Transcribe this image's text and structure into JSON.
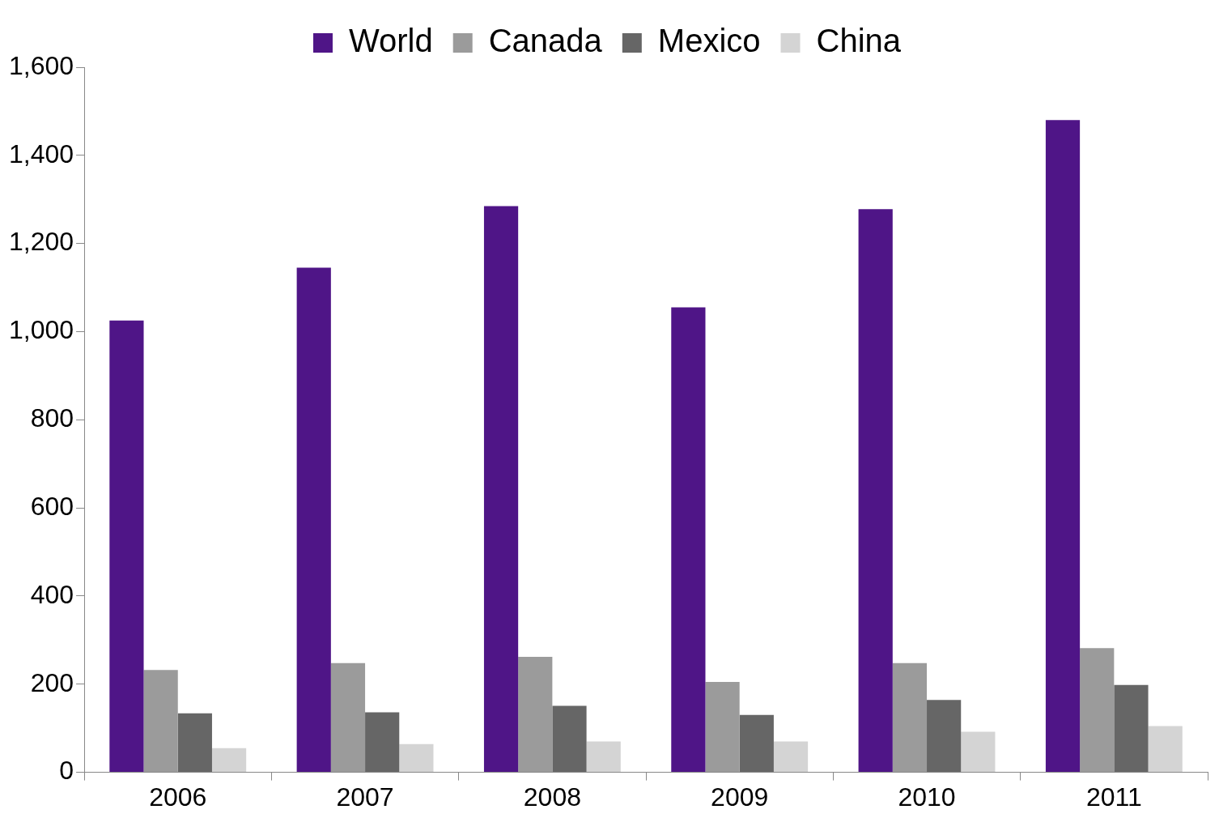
{
  "chart_data": {
    "type": "bar",
    "categories": [
      "2006",
      "2007",
      "2008",
      "2009",
      "2010",
      "2011"
    ],
    "series": [
      {
        "name": "World",
        "color": "#4f1587",
        "values": [
          1025,
          1145,
          1285,
          1055,
          1278,
          1480
        ]
      },
      {
        "name": "Canada",
        "color": "#9b9b9b",
        "values": [
          232,
          248,
          262,
          205,
          248,
          282
        ]
      },
      {
        "name": "Mexico",
        "color": "#666666",
        "values": [
          134,
          136,
          151,
          130,
          164,
          198
        ]
      },
      {
        "name": "China",
        "color": "#d4d4d4",
        "values": [
          55,
          64,
          70,
          70,
          92,
          105
        ]
      }
    ],
    "ylim": [
      0,
      1600
    ],
    "yticks": [
      {
        "value": 0,
        "label": "0"
      },
      {
        "value": 200,
        "label": "200"
      },
      {
        "value": 400,
        "label": "400"
      },
      {
        "value": 600,
        "label": "600"
      },
      {
        "value": 800,
        "label": "800"
      },
      {
        "value": 1000,
        "label": "1,000"
      },
      {
        "value": 1200,
        "label": "1,200"
      },
      {
        "value": 1400,
        "label": "1,400"
      },
      {
        "value": 1600,
        "label": "1,600"
      }
    ],
    "grid": false,
    "legend": "top"
  }
}
